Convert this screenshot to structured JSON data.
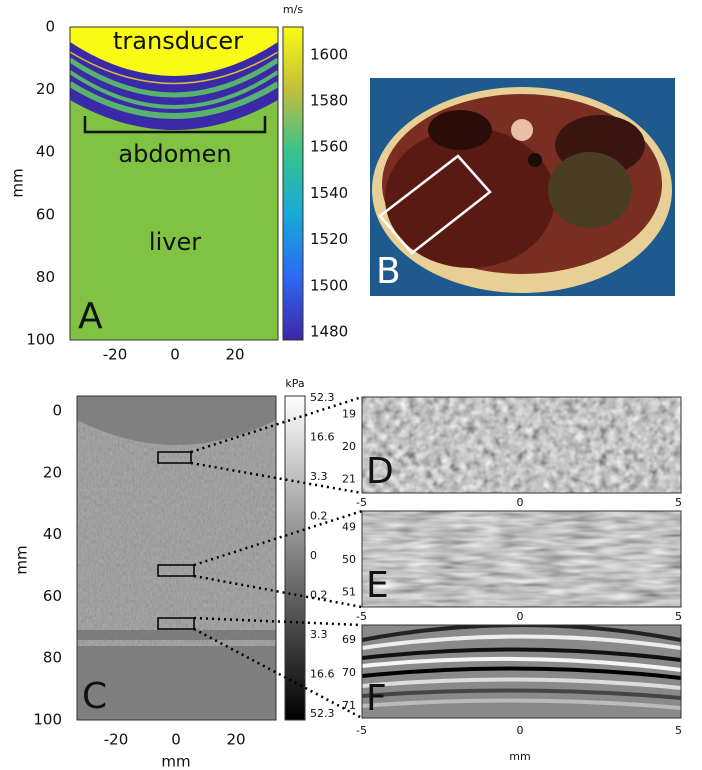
{
  "panels": {
    "a": {
      "label": "A",
      "ylabel": "mm",
      "yticks": [
        0,
        20,
        40,
        60,
        80,
        100
      ],
      "xticks": [
        -20,
        0,
        20
      ],
      "annotations": [
        "transducer",
        "abdomen",
        "liver"
      ],
      "colorbar": {
        "unit": "m/s",
        "ticks": [
          1480,
          1500,
          1520,
          1540,
          1560,
          1580,
          1600
        ]
      }
    },
    "b": {
      "label": "B"
    },
    "c": {
      "label": "C",
      "ylabel": "mm",
      "xlabel": "mm",
      "yticks": [
        0,
        20,
        40,
        60,
        80,
        100
      ],
      "xticks": [
        -20,
        0,
        20
      ],
      "colorbar": {
        "unit": "kPa",
        "ticks": [
          "52.3",
          "16.6",
          "3.3",
          "0.2",
          "0",
          "0.2",
          "3.3",
          "16.6",
          "52.3"
        ]
      }
    },
    "d": {
      "label": "D",
      "yticks": [
        19,
        20,
        21
      ],
      "xticks": [
        -5,
        0,
        5
      ]
    },
    "e": {
      "label": "E",
      "yticks": [
        49,
        50,
        51
      ],
      "xticks": [
        -5,
        0,
        5
      ]
    },
    "f": {
      "label": "F",
      "yticks": [
        69,
        70,
        71
      ],
      "xticks": [
        -5,
        0,
        5
      ],
      "xlabel": "mm"
    }
  }
}
